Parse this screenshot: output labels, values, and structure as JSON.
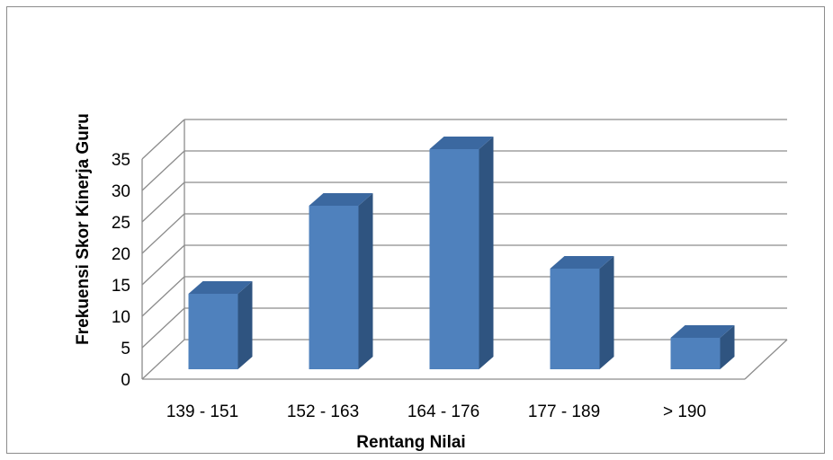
{
  "chart_data": {
    "type": "bar",
    "style": "3d-column",
    "categories": [
      "139 - 151",
      "152 - 163",
      "164 - 176",
      "177 - 189",
      "> 190"
    ],
    "values": [
      12,
      26,
      35,
      16,
      5
    ],
    "xlabel": "Rentang Nilai",
    "ylabel": "Frekuensi Skor Kinerja Guru",
    "ylim": [
      0,
      35
    ],
    "yticks": [
      0,
      5,
      10,
      15,
      20,
      25,
      30,
      35
    ],
    "grid": true,
    "legend": "none",
    "colors": {
      "bar_front": "#4f81bd",
      "bar_side": "#2f5480",
      "bar_top": "#3b68a0",
      "grid": "#8c8c8c"
    }
  }
}
